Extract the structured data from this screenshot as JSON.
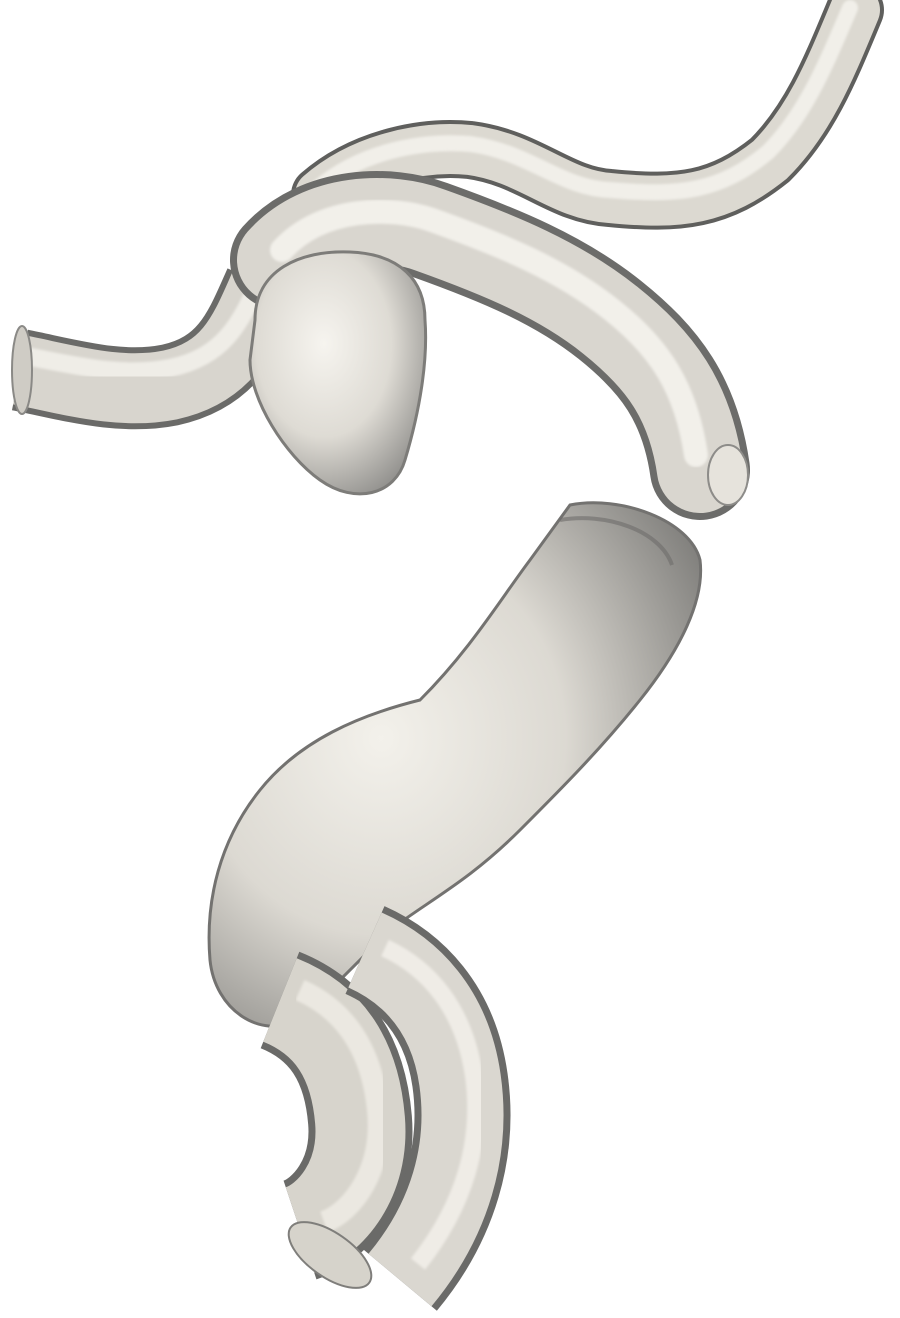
{
  "scene": {
    "background_color": "#ffffff",
    "surface_color": "#e8e5dd",
    "surface_shadow_color": "#7a7a78",
    "surface_highlight_color": "#f7f5f0"
  }
}
